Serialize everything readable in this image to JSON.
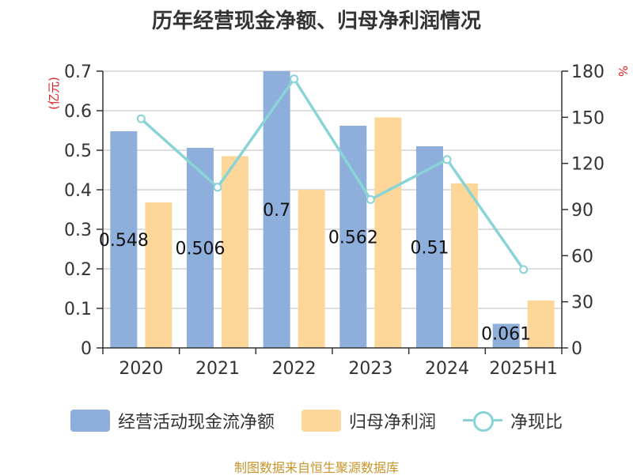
{
  "chart_data": {
    "type": "bar",
    "title": "历年经营现金净额、归母净利润情况",
    "categories": [
      "2020",
      "2021",
      "2022",
      "2023",
      "2024",
      "2025H1"
    ],
    "y_left": {
      "label": "(亿元)",
      "min": 0,
      "max": 0.7,
      "ticks": [
        0,
        0.1,
        0.2,
        0.3,
        0.4,
        0.5,
        0.6,
        0.7
      ]
    },
    "y_right": {
      "label": "%",
      "min": 0,
      "max": 180,
      "ticks": [
        0,
        30,
        60,
        90,
        120,
        150,
        180
      ]
    },
    "series": [
      {
        "name": "经营活动现金流净额",
        "type": "bar",
        "axis": "left",
        "color": "#8eaedb",
        "values": [
          0.548,
          0.506,
          0.7,
          0.562,
          0.51,
          0.061
        ],
        "labels": [
          "0.548",
          "0.506",
          "0.7",
          "0.562",
          "0.51",
          "0.061"
        ]
      },
      {
        "name": "归母净利润",
        "type": "bar",
        "axis": "left",
        "color": "#fdd799",
        "values": [
          0.368,
          0.485,
          0.4,
          0.583,
          0.416,
          0.12
        ]
      },
      {
        "name": "净现比",
        "type": "line",
        "axis": "right",
        "color": "#8ad3d6",
        "values": [
          149.0,
          104.5,
          175.0,
          96.5,
          122.5,
          51.0
        ]
      }
    ],
    "grid": true,
    "legend_position": "bottom"
  },
  "source": "制图数据来自恒生聚源数据库"
}
